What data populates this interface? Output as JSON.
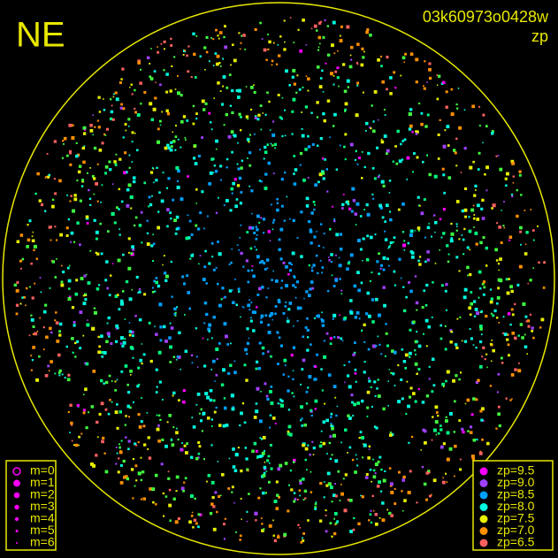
{
  "corner_label": "NE",
  "image_id": "03k60973o0428w",
  "mode": "zp",
  "magnitude_legend": {
    "labels": [
      "m=0",
      "m=1",
      "m=2",
      "m=3",
      "m=4",
      "m=5",
      "m=6"
    ],
    "color": "#ff00ff"
  },
  "zp_legend": [
    {
      "label": "zp=9.5",
      "color": "#ff00ff"
    },
    {
      "label": "zp=9.0",
      "color": "#a040ff"
    },
    {
      "label": "zp=8.5",
      "color": "#00a0ff"
    },
    {
      "label": "zp=8.0",
      "color": "#00ffe0"
    },
    {
      "label": "zp=7.5",
      "color": "#e8f000"
    },
    {
      "label": "zp=7.0",
      "color": "#ff9000"
    },
    {
      "label": "zp=6.5",
      "color": "#ff6060"
    }
  ]
}
